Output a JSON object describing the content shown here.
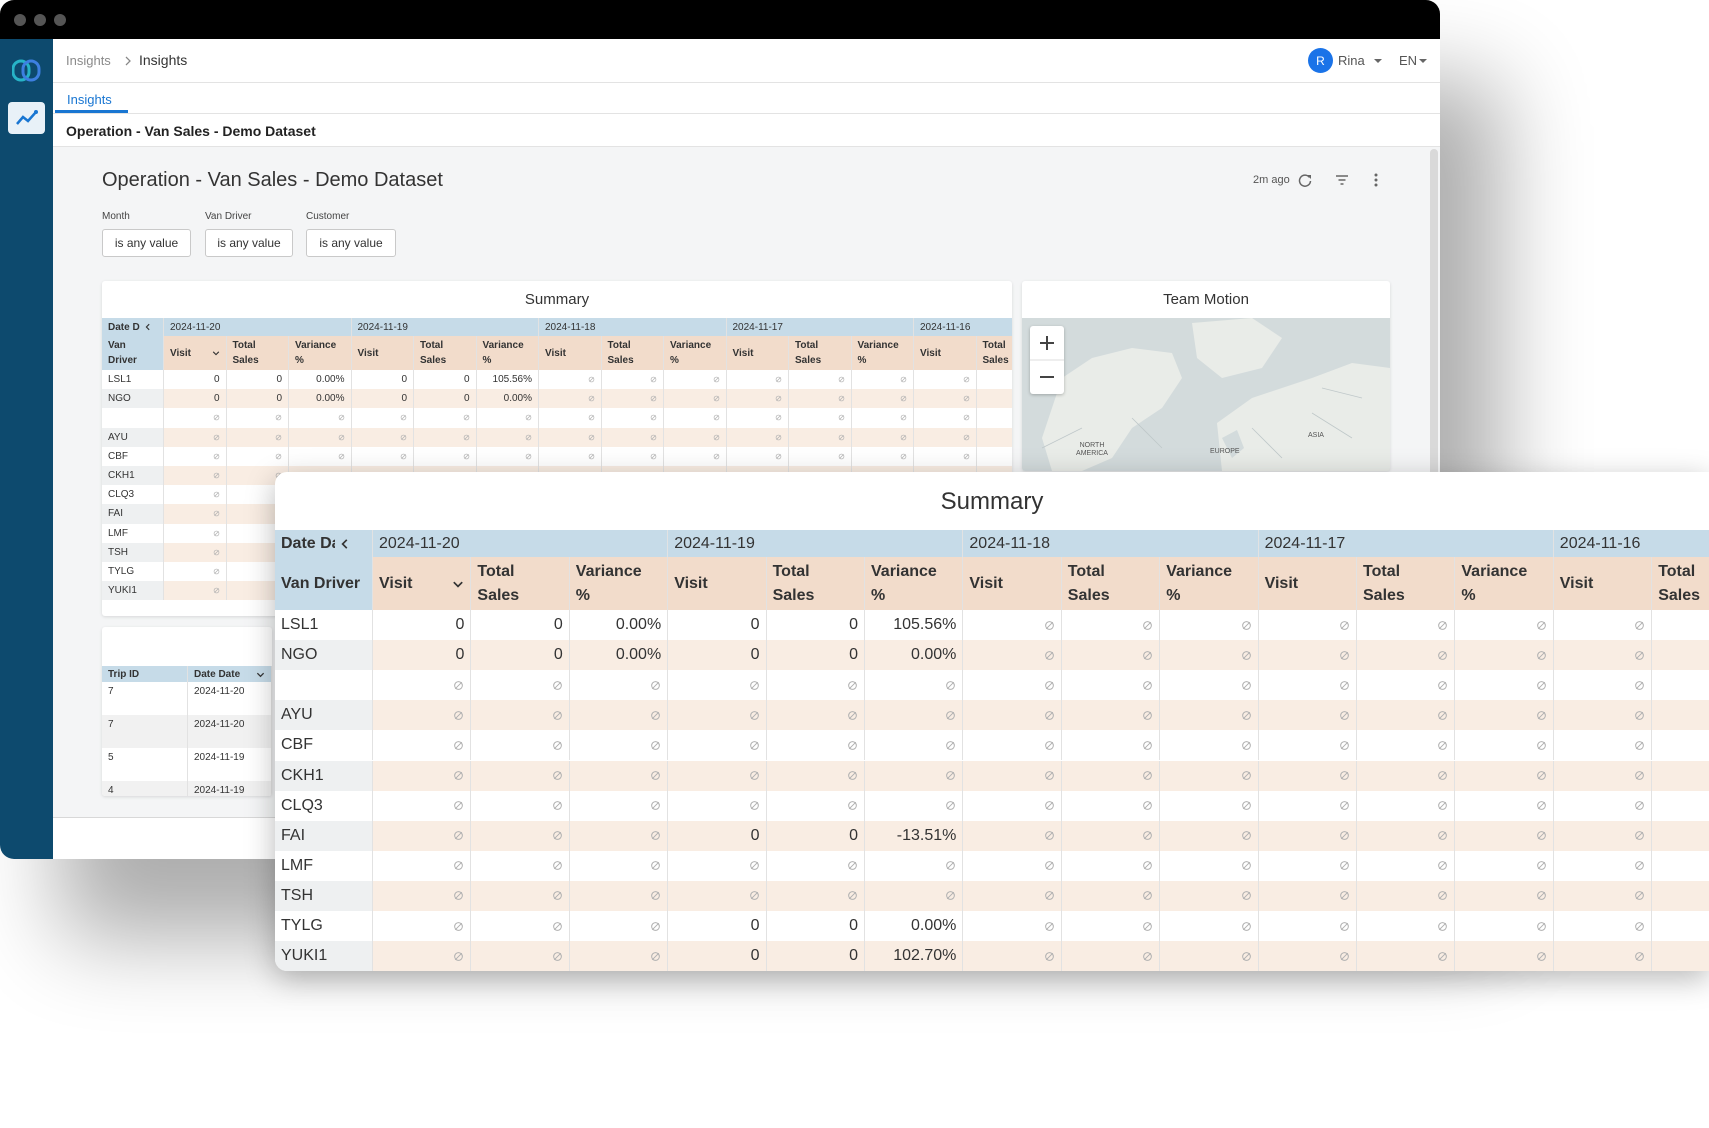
{
  "window": {
    "breadcrumb": [
      "Insights",
      "Insights"
    ],
    "user": {
      "initial": "R",
      "name": "Rina"
    },
    "language": "EN",
    "tab": "Insights",
    "page_title": "Operation - Van Sales - Demo Dataset"
  },
  "dashboard": {
    "title": "Operation - Van Sales - Demo Dataset",
    "updated": "2m ago",
    "filters": [
      {
        "label": "Month",
        "value": "is any value"
      },
      {
        "label": "Van Driver",
        "value": "is any value"
      },
      {
        "label": "Customer",
        "value": "is any value"
      }
    ]
  },
  "summary": {
    "title": "Summary",
    "date_label": "Date Date",
    "dates": [
      "2024-11-20",
      "2024-11-19",
      "2024-11-18",
      "2024-11-17",
      "2024-11-16"
    ],
    "row_label": "Van Driver",
    "columns": [
      "Visit",
      "Total Sales",
      "Variance %"
    ],
    "rows": [
      {
        "driver": "LSL1",
        "cells": [
          0,
          0,
          "0.00%",
          0,
          0,
          "105.56%",
          null,
          null,
          null,
          null,
          null,
          null,
          null,
          null,
          null
        ]
      },
      {
        "driver": "NGO",
        "cells": [
          0,
          0,
          "0.00%",
          0,
          0,
          "0.00%",
          null,
          null,
          null,
          null,
          null,
          null,
          null,
          null,
          null
        ]
      },
      {
        "driver": null,
        "cells": [
          null,
          null,
          null,
          null,
          null,
          null,
          null,
          null,
          null,
          null,
          null,
          null,
          null,
          null,
          null
        ]
      },
      {
        "driver": "AYU",
        "cells": [
          null,
          null,
          null,
          null,
          null,
          null,
          null,
          null,
          null,
          null,
          null,
          null,
          null,
          null,
          null
        ]
      },
      {
        "driver": "CBF",
        "cells": [
          null,
          null,
          null,
          null,
          null,
          null,
          null,
          null,
          null,
          null,
          null,
          null,
          null,
          null,
          null
        ]
      },
      {
        "driver": "CKH1",
        "cells": [
          null,
          null,
          null,
          null,
          null,
          null,
          null,
          null,
          null,
          null,
          null,
          null,
          null,
          null,
          null
        ]
      },
      {
        "driver": "CLQ3",
        "cells": [
          null,
          null,
          null,
          null,
          null,
          null,
          null,
          null,
          null,
          null,
          null,
          null,
          null,
          null,
          null
        ]
      },
      {
        "driver": "FAI",
        "cells": [
          null,
          null,
          null,
          0,
          0,
          "-13.51%",
          null,
          null,
          null,
          null,
          null,
          null,
          null,
          null,
          null
        ]
      },
      {
        "driver": "LMF",
        "cells": [
          null,
          null,
          null,
          null,
          null,
          null,
          null,
          null,
          null,
          null,
          null,
          null,
          null,
          null,
          null
        ]
      },
      {
        "driver": "TSH",
        "cells": [
          null,
          null,
          null,
          null,
          null,
          null,
          null,
          null,
          null,
          null,
          null,
          null,
          null,
          null,
          null
        ]
      },
      {
        "driver": "TYLG",
        "cells": [
          null,
          null,
          null,
          0,
          0,
          "0.00%",
          null,
          null,
          null,
          null,
          null,
          null,
          null,
          null,
          null
        ]
      },
      {
        "driver": "YUKI1",
        "cells": [
          null,
          null,
          null,
          0,
          0,
          "102.70%",
          null,
          null,
          null,
          null,
          null,
          null,
          null,
          null,
          null
        ]
      }
    ]
  },
  "team_motion": {
    "title": "Team Motion",
    "labels": [
      "NORTH AMERICA",
      "EUROPE",
      "ASIA"
    ]
  },
  "trips": {
    "columns": [
      "Trip ID",
      "Date Date"
    ],
    "rows": [
      [
        7,
        "2024-11-20"
      ],
      [
        7,
        "2024-11-20"
      ],
      [
        5,
        "2024-11-19"
      ],
      [
        4,
        "2024-11-19"
      ]
    ]
  }
}
